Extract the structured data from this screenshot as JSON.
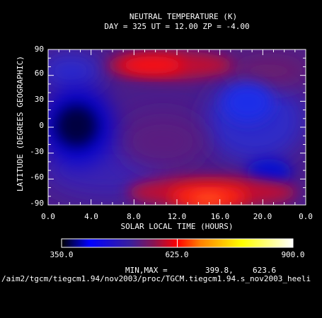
{
  "chart_data": {
    "type": "heatmap",
    "title": "NEUTRAL TEMPERATURE (K)",
    "subtitle": "DAY = 325   UT = 12.00   ZP =   -4.00",
    "xlabel": "SOLAR LOCAL TIME (HOURS)",
    "ylabel": "LATITUDE (DEGREES GEOGRAPHIC)",
    "xlim": [
      0.0,
      24.0
    ],
    "ylim": [
      -90,
      90
    ],
    "xticks": [
      "0.0",
      "4.0",
      "8.0",
      "12.0",
      "16.0",
      "20.0",
      "0.0"
    ],
    "yticks": [
      "-90",
      "-60",
      "-30",
      "0",
      "30",
      "60",
      "90"
    ],
    "colorbar": {
      "min": 350.0,
      "max": 900.0,
      "tick_labels": [
        "350.0",
        "625.0",
        "900.0"
      ],
      "stops": [
        "#000000",
        "#0000ff",
        "#3b1f9a",
        "#8a1450",
        "#ff0000",
        "#ff8000",
        "#ffff00",
        "#ffffff"
      ]
    },
    "minmax_label": "MIN,MAX =",
    "min_value": "399.8,",
    "max_value": "623.6",
    "features": [
      {
        "x": 2.5,
        "y": 0,
        "value": 400,
        "kind": "min"
      },
      {
        "x": 14.5,
        "y": -82,
        "value": 623,
        "kind": "max"
      },
      {
        "x": 12.5,
        "y": 68,
        "value": 560,
        "kind": "max"
      },
      {
        "x": 20.5,
        "y": -50,
        "value": 420,
        "kind": "min"
      },
      {
        "x": 19.5,
        "y": 20,
        "value": 440,
        "kind": "min"
      },
      {
        "x": 4.0,
        "y": 70,
        "value": 450,
        "kind": "min"
      }
    ]
  },
  "footer_path": "/aim2/tgcm/tiegcm1.94/nov2003/proc/TGCM.tiegcm1.94.s_nov2003_heeli"
}
